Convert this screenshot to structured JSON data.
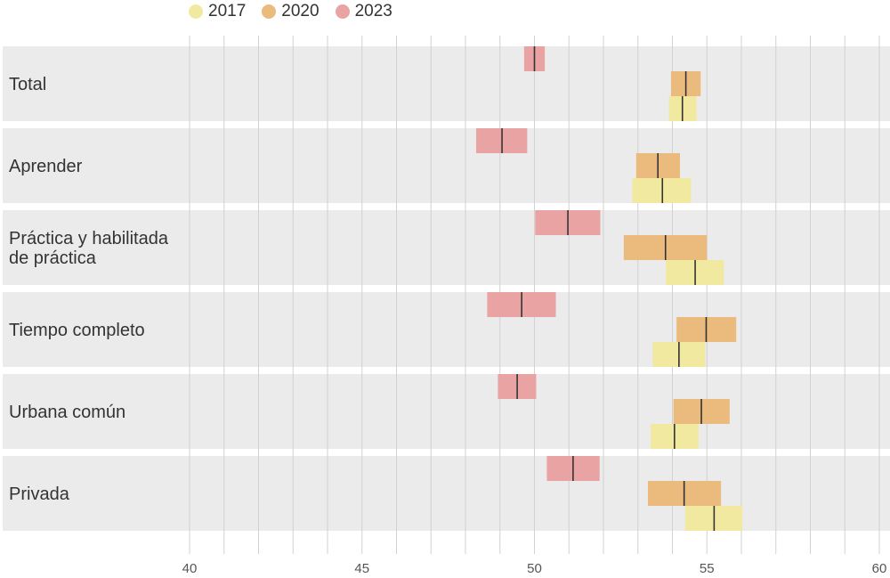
{
  "chart_data": {
    "type": "interval",
    "xlim": [
      40,
      60
    ],
    "xticks": [
      40,
      45,
      50,
      55,
      60
    ],
    "grid": true,
    "legend_placement": "top",
    "series": [
      {
        "name": "2017",
        "color": "#f2e9a0"
      },
      {
        "name": "2020",
        "color": "#ebbb7d"
      },
      {
        "name": "2023",
        "color": "#e9a3a3"
      }
    ],
    "categories": [
      {
        "label": [
          "Total"
        ],
        "values": {
          "2023": {
            "low": 49.7,
            "mean": 50.0,
            "high": 50.3
          },
          "2020": {
            "low": 53.96,
            "mean": 54.39,
            "high": 54.82
          },
          "2017": {
            "low": 53.9,
            "mean": 54.29,
            "high": 54.7
          }
        }
      },
      {
        "label": [
          "Aprender"
        ],
        "values": {
          "2023": {
            "low": 48.31,
            "mean": 49.06,
            "high": 49.79
          },
          "2020": {
            "low": 52.95,
            "mean": 53.58,
            "high": 54.22
          },
          "2017": {
            "low": 52.84,
            "mean": 53.71,
            "high": 54.54
          }
        }
      },
      {
        "label": [
          "Práctica y habilitada",
          "de práctica"
        ],
        "values": {
          "2023": {
            "low": 50.02,
            "mean": 50.97,
            "high": 51.91
          },
          "2020": {
            "low": 52.59,
            "mean": 53.8,
            "high": 55.0
          },
          "2017": {
            "low": 53.81,
            "mean": 54.66,
            "high": 55.49
          }
        }
      },
      {
        "label": [
          "Tiempo completo"
        ],
        "values": {
          "2023": {
            "low": 48.63,
            "mean": 49.63,
            "high": 50.62
          },
          "2020": {
            "low": 54.12,
            "mean": 54.98,
            "high": 55.85
          },
          "2017": {
            "low": 53.43,
            "mean": 54.19,
            "high": 54.95
          }
        }
      },
      {
        "label": [
          "Urbana común"
        ],
        "values": {
          "2023": {
            "low": 48.94,
            "mean": 49.5,
            "high": 50.05
          },
          "2020": {
            "low": 54.03,
            "mean": 54.84,
            "high": 55.66
          },
          "2017": {
            "low": 53.37,
            "mean": 54.06,
            "high": 54.76
          }
        }
      },
      {
        "label": [
          "Privada"
        ],
        "values": {
          "2023": {
            "low": 50.36,
            "mean": 51.12,
            "high": 51.89
          },
          "2020": {
            "low": 53.29,
            "mean": 54.34,
            "high": 55.41
          },
          "2017": {
            "low": 54.37,
            "mean": 55.21,
            "high": 56.03
          }
        }
      }
    ]
  }
}
